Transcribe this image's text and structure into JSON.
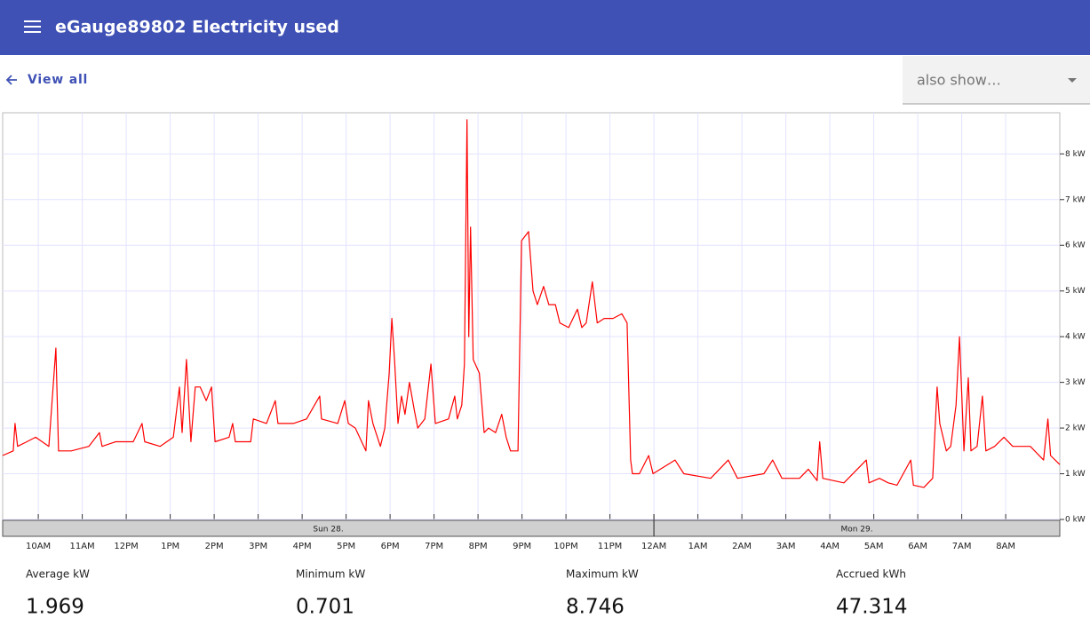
{
  "header": {
    "title": "eGauge89802 Electricity used"
  },
  "nav": {
    "back_label": "View all"
  },
  "select": {
    "placeholder": "also show…"
  },
  "chart_data": {
    "type": "line",
    "color": "#ff0000",
    "grid": true,
    "xlim": [
      9.19,
      33.23
    ],
    "ylim": [
      0,
      8.9
    ],
    "yticks": [
      {
        "value": 0,
        "label": "0 kW"
      },
      {
        "value": 1,
        "label": "1 kW"
      },
      {
        "value": 2,
        "label": "2 kW"
      },
      {
        "value": 3,
        "label": "3 kW"
      },
      {
        "value": 4,
        "label": "4 kW"
      },
      {
        "value": 5,
        "label": "5 kW"
      },
      {
        "value": 6,
        "label": "6 kW"
      },
      {
        "value": 7,
        "label": "7 kW"
      },
      {
        "value": 8,
        "label": "8 kW"
      }
    ],
    "xticks": [
      {
        "value": 10,
        "label": "10AM"
      },
      {
        "value": 11,
        "label": "11AM"
      },
      {
        "value": 12,
        "label": "12PM"
      },
      {
        "value": 13,
        "label": "1PM"
      },
      {
        "value": 14,
        "label": "2PM"
      },
      {
        "value": 15,
        "label": "3PM"
      },
      {
        "value": 16,
        "label": "4PM"
      },
      {
        "value": 17,
        "label": "5PM"
      },
      {
        "value": 18,
        "label": "6PM"
      },
      {
        "value": 19,
        "label": "7PM"
      },
      {
        "value": 20,
        "label": "8PM"
      },
      {
        "value": 21,
        "label": "9PM"
      },
      {
        "value": 22,
        "label": "10PM"
      },
      {
        "value": 23,
        "label": "11PM"
      },
      {
        "value": 24,
        "label": "12AM"
      },
      {
        "value": 25,
        "label": "1AM"
      },
      {
        "value": 26,
        "label": "2AM"
      },
      {
        "value": 27,
        "label": "3AM"
      },
      {
        "value": 28,
        "label": "4AM"
      },
      {
        "value": 29,
        "label": "5AM"
      },
      {
        "value": 30,
        "label": "6AM"
      },
      {
        "value": 31,
        "label": "7AM"
      },
      {
        "value": 32,
        "label": "8AM"
      }
    ],
    "days": [
      "Sun 28.",
      "Mon 29."
    ],
    "day_boundary": 24,
    "x": [
      9.19,
      9.43,
      9.47,
      9.53,
      9.74,
      9.94,
      10.24,
      10.4,
      10.46,
      10.75,
      11.15,
      11.39,
      11.45,
      11.76,
      12.16,
      12.36,
      12.42,
      12.77,
      13.07,
      13.21,
      13.27,
      13.37,
      13.47,
      13.57,
      13.68,
      13.82,
      13.94,
      14.02,
      14.34,
      14.42,
      14.48,
      14.83,
      14.89,
      15.19,
      15.39,
      15.45,
      15.8,
      16.1,
      16.4,
      16.44,
      16.81,
      16.97,
      17.05,
      17.21,
      17.45,
      17.51,
      17.61,
      17.78,
      17.88,
      17.98,
      18.04,
      18.1,
      18.18,
      18.26,
      18.34,
      18.44,
      18.55,
      18.63,
      18.79,
      18.93,
      19.03,
      19.33,
      19.47,
      19.53,
      19.63,
      19.69,
      19.75,
      19.79,
      19.83,
      19.89,
      20.03,
      20.14,
      20.24,
      20.4,
      20.54,
      20.64,
      20.74,
      20.91,
      20.99,
      21.15,
      21.25,
      21.35,
      21.49,
      21.61,
      21.76,
      21.86,
      22.06,
      22.26,
      22.36,
      22.46,
      22.6,
      22.71,
      22.87,
      23.07,
      23.27,
      23.39,
      23.47,
      23.51,
      23.67,
      23.88,
      23.98,
      24.48,
      24.68,
      25.29,
      25.69,
      25.9,
      26.5,
      26.7,
      26.91,
      27.31,
      27.51,
      27.71,
      27.77,
      27.84,
      28.32,
      28.83,
      28.89,
      29.13,
      29.33,
      29.53,
      29.84,
      29.9,
      30.14,
      30.34,
      30.44,
      30.5,
      30.65,
      30.75,
      30.87,
      30.95,
      31.05,
      31.15,
      31.21,
      31.35,
      31.47,
      31.55,
      31.75,
      31.96,
      32.16,
      32.56,
      32.86,
      32.96,
      33.02,
      33.23
    ],
    "values": [
      1.4,
      1.5,
      2.1,
      1.6,
      1.7,
      1.8,
      1.6,
      3.75,
      1.5,
      1.5,
      1.6,
      1.9,
      1.6,
      1.7,
      1.7,
      2.1,
      1.7,
      1.6,
      1.8,
      2.9,
      1.9,
      3.5,
      1.7,
      2.9,
      2.9,
      2.6,
      2.9,
      1.7,
      1.8,
      2.1,
      1.7,
      1.7,
      2.2,
      2.1,
      2.6,
      2.1,
      2.1,
      2.2,
      2.7,
      2.2,
      2.1,
      2.6,
      2.1,
      2.0,
      1.5,
      2.6,
      2.1,
      1.6,
      2.0,
      3.2,
      4.4,
      3.5,
      2.1,
      2.7,
      2.3,
      3.0,
      2.4,
      2.0,
      2.2,
      3.4,
      2.1,
      2.2,
      2.7,
      2.2,
      2.5,
      3.4,
      8.746,
      4.0,
      6.4,
      3.5,
      3.2,
      1.9,
      2.0,
      1.9,
      2.3,
      1.8,
      1.5,
      1.5,
      6.1,
      6.3,
      5.0,
      4.7,
      5.1,
      4.7,
      4.7,
      4.3,
      4.2,
      4.6,
      4.2,
      4.3,
      5.2,
      4.3,
      4.4,
      4.4,
      4.5,
      4.3,
      1.3,
      1.0,
      1.0,
      1.4,
      1.0,
      1.3,
      1.0,
      0.9,
      1.3,
      0.9,
      1.0,
      1.3,
      0.9,
      0.9,
      1.1,
      0.85,
      1.7,
      0.9,
      0.8,
      1.3,
      0.8,
      0.9,
      0.8,
      0.75,
      1.3,
      0.75,
      0.701,
      0.9,
      2.9,
      2.1,
      1.5,
      1.6,
      2.5,
      4.0,
      1.5,
      3.1,
      1.5,
      1.6,
      2.7,
      1.5,
      1.6,
      1.8,
      1.6,
      1.6,
      1.3,
      2.2,
      1.4,
      1.2
    ]
  },
  "stats": [
    {
      "label": "Average kW",
      "value": 1.969
    },
    {
      "label": "Minimum kW",
      "value": 0.701
    },
    {
      "label": "Maximum kW",
      "value": 8.746
    },
    {
      "label": "Accrued kWh",
      "value": 47.314
    }
  ]
}
